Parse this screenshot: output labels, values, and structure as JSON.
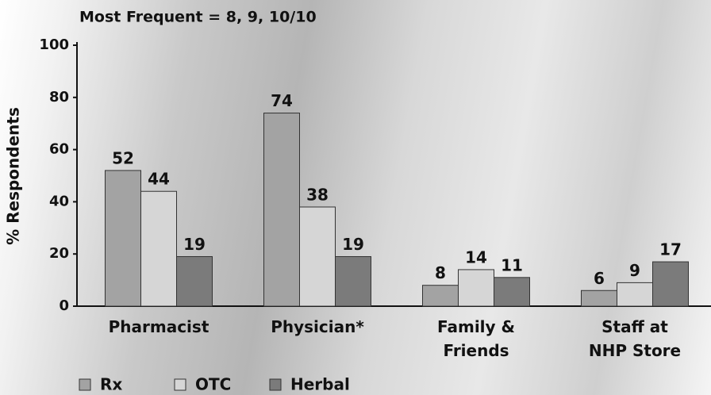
{
  "chart_data": {
    "type": "bar",
    "title": "Most Frequent = 8, 9, 10/10",
    "y_label": "% Respondents",
    "categories": [
      "Pharmacist",
      "Physician*",
      "Family &\nFriends",
      "Staff at\nNHP Store"
    ],
    "series": [
      {
        "name": "Rx",
        "color": "#a3a3a3",
        "values": [
          52,
          74,
          8,
          6
        ]
      },
      {
        "name": "OTC",
        "color": "#d6d6d6",
        "values": [
          44,
          38,
          14,
          9
        ]
      },
      {
        "name": "Herbal",
        "color": "#7b7b7b",
        "values": [
          19,
          19,
          11,
          17
        ]
      }
    ],
    "ylim": [
      0,
      100
    ],
    "yticks": [
      0,
      20,
      40,
      60,
      80,
      100
    ]
  }
}
